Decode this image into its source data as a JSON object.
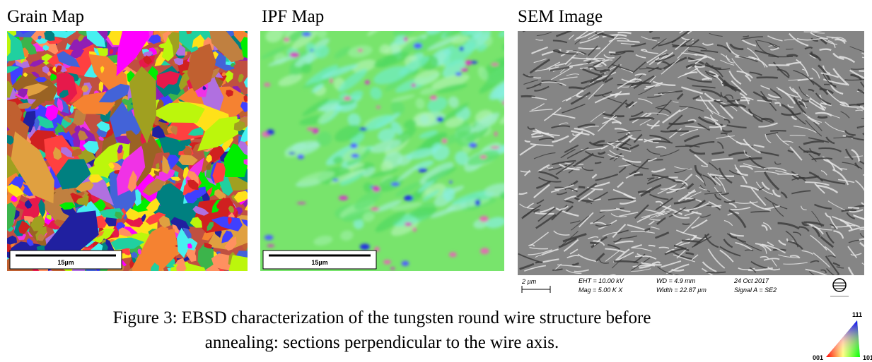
{
  "panels": [
    {
      "title": "Grain Map",
      "scale_bar": "15µm"
    },
    {
      "title": "IPF Map",
      "scale_bar": "15µm"
    },
    {
      "title": "SEM Image",
      "scale_bar": "2 µm",
      "info": [
        "EHT = 10.00 kV",
        "Mag =   5.00 K X",
        "WD =  4.9 mm",
        "Width = 22.87 µm",
        "24 Oct 2017",
        "Signal A = SE2"
      ]
    }
  ],
  "caption": [
    "Figure 3: EBSD characterization of the tungsten round wire structure before",
    "annealing: sections perpendicular to the wire axis."
  ],
  "ipf_legend": {
    "top": "111",
    "left": "001",
    "right": "101"
  }
}
